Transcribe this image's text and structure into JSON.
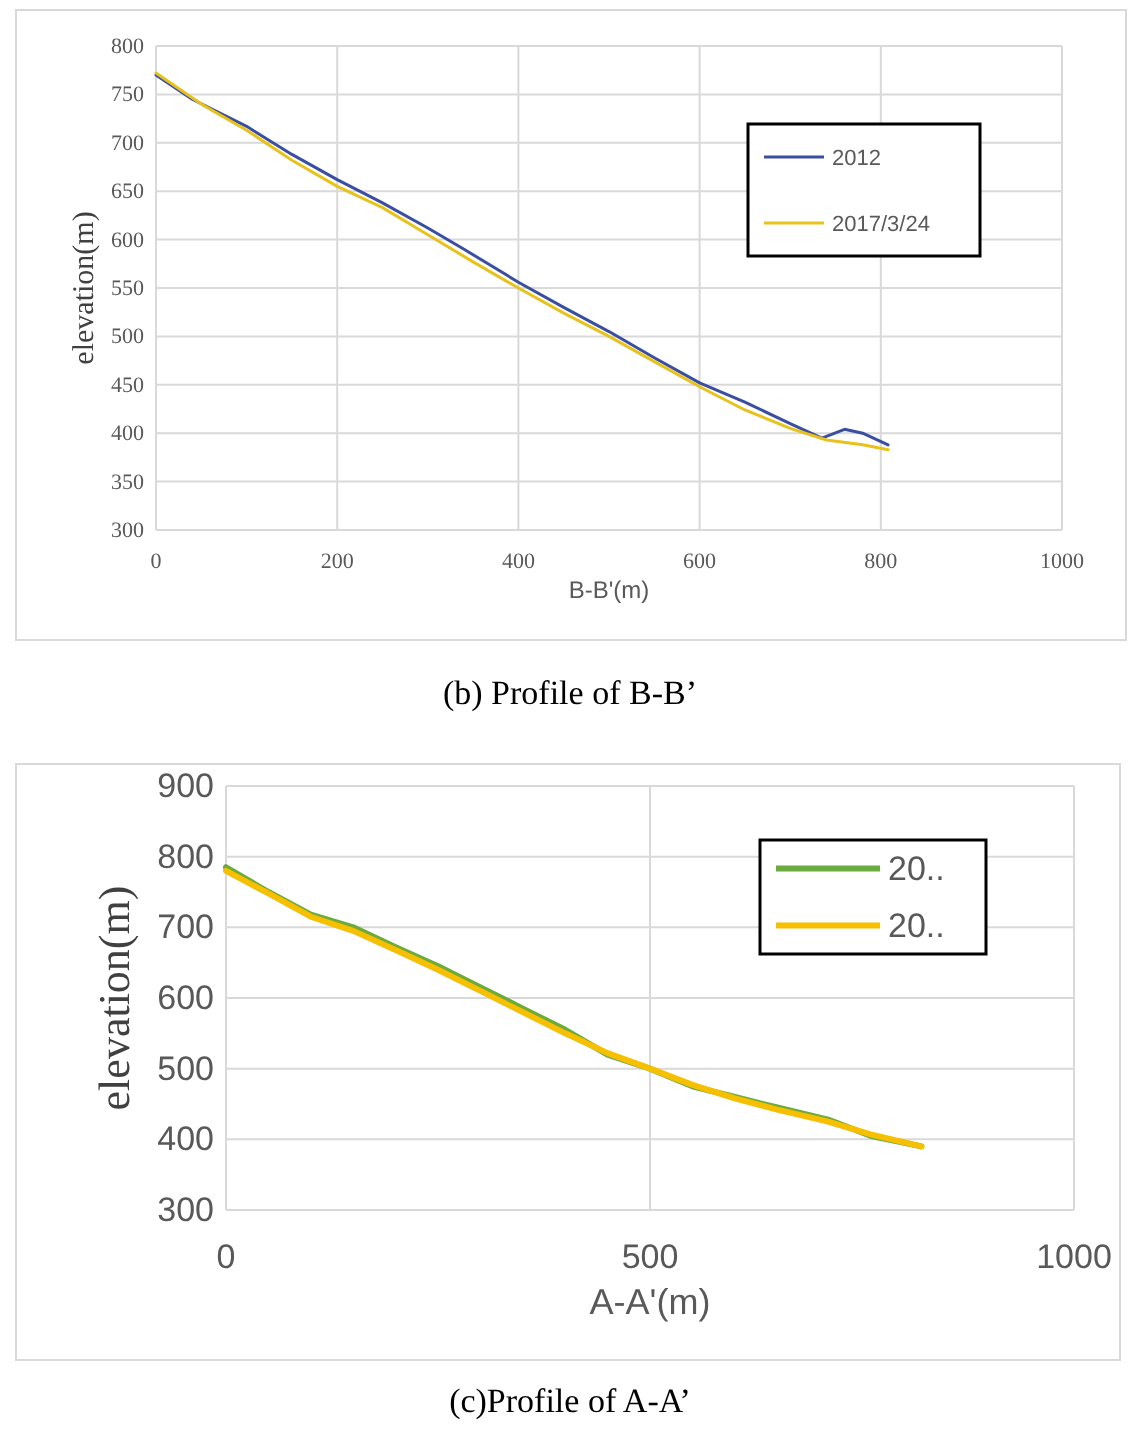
{
  "chart_data": [
    {
      "type": "line",
      "xlabel": "B-B'(m)",
      "ylabel": "elevation(m)",
      "xlim": [
        0,
        1000
      ],
      "xticks": [
        0,
        200,
        400,
        600,
        800,
        1000
      ],
      "ylim": [
        300,
        800
      ],
      "yticks": [
        300,
        350,
        400,
        450,
        500,
        550,
        600,
        650,
        700,
        750,
        800
      ],
      "grid": true,
      "legend": "top right",
      "annotations": [
        "(b) Profile of B-B’"
      ],
      "series": [
        {
          "name": "2012",
          "color": "#3a4fa0",
          "x": [
            0,
            40,
            100,
            150,
            200,
            250,
            300,
            340,
            400,
            450,
            500,
            550,
            600,
            650,
            700,
            735,
            760,
            780,
            808
          ],
          "values": [
            770,
            745,
            717,
            688,
            662,
            638,
            612,
            590,
            556,
            530,
            505,
            478,
            452,
            432,
            410,
            395,
            404,
            400,
            388
          ]
        },
        {
          "name": "2017/3/24",
          "color": "#e8c21c",
          "x": [
            0,
            50,
            100,
            150,
            200,
            250,
            300,
            350,
            400,
            450,
            500,
            550,
            600,
            650,
            700,
            740,
            780,
            808
          ],
          "values": [
            772,
            740,
            713,
            682,
            655,
            633,
            605,
            577,
            550,
            524,
            500,
            474,
            448,
            424,
            405,
            393,
            388,
            383
          ]
        }
      ]
    },
    {
      "type": "line",
      "xlabel": "A-A'(m)",
      "ylabel": "elevation(m)",
      "xlim": [
        0,
        1000
      ],
      "xticks": [
        0,
        500,
        1000
      ],
      "ylim": [
        300,
        900
      ],
      "yticks": [
        300,
        400,
        500,
        600,
        700,
        800,
        900
      ],
      "grid": true,
      "legend": "top right",
      "annotations": [
        "(c)Profile of A-A’"
      ],
      "series": [
        {
          "name": "20..",
          "color": "#6aaa3f",
          "x": [
            0,
            50,
            100,
            150,
            200,
            250,
            300,
            350,
            400,
            450,
            500,
            550,
            600,
            650,
            710,
            760,
            820
          ],
          "values": [
            785,
            750,
            718,
            700,
            672,
            645,
            615,
            585,
            555,
            520,
            500,
            475,
            460,
            445,
            428,
            405,
            390
          ]
        },
        {
          "name": "20..",
          "color": "#f6c000",
          "x": [
            0,
            50,
            100,
            150,
            200,
            250,
            300,
            350,
            400,
            450,
            500,
            550,
            600,
            650,
            710,
            760,
            820
          ],
          "values": [
            780,
            748,
            715,
            695,
            668,
            640,
            610,
            580,
            550,
            522,
            500,
            477,
            458,
            442,
            425,
            407,
            390
          ]
        }
      ]
    }
  ]
}
